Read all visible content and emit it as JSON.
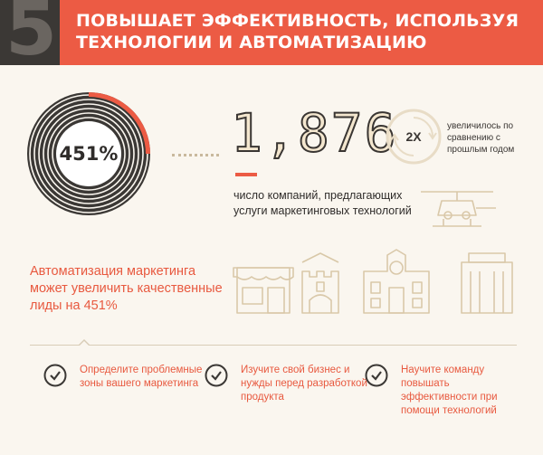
{
  "header": {
    "number": "5",
    "title_line1": "ПОВЫШАЕТ ЭФФЕКТИВНОСТЬ, ИСПОЛЬЗУЯ",
    "title_line2": "ТЕХНОЛОГИИ И АВТОМАТИЗАЦИЮ"
  },
  "stat_donut": {
    "value": "451%"
  },
  "stat_companies": {
    "value": "1,876",
    "description": "число компаний, предлагающих услуги маркетинговых технологий"
  },
  "stat_growth": {
    "value": "2X",
    "description": "увеличилось по сравнению с прошлым годом"
  },
  "claim": "Автоматизация маркетинга может увеличить качественные лиды на 451%",
  "icons": [
    "helicopter-icon",
    "shop-icon",
    "castle-icon",
    "clock-building-icon",
    "office-building-icon"
  ],
  "tips": [
    {
      "text": "Определите проблемные зоны вашего маркетинга"
    },
    {
      "text": "Изучите свой бизнес и нужды перед разработкой продукта"
    },
    {
      "text": "Научите команду повышать эффективности при помощи технологий"
    }
  ],
  "colors": {
    "accent": "#ec5b44",
    "dark": "#3b3835",
    "line": "#c9b99d",
    "background": "#faf6ef"
  }
}
